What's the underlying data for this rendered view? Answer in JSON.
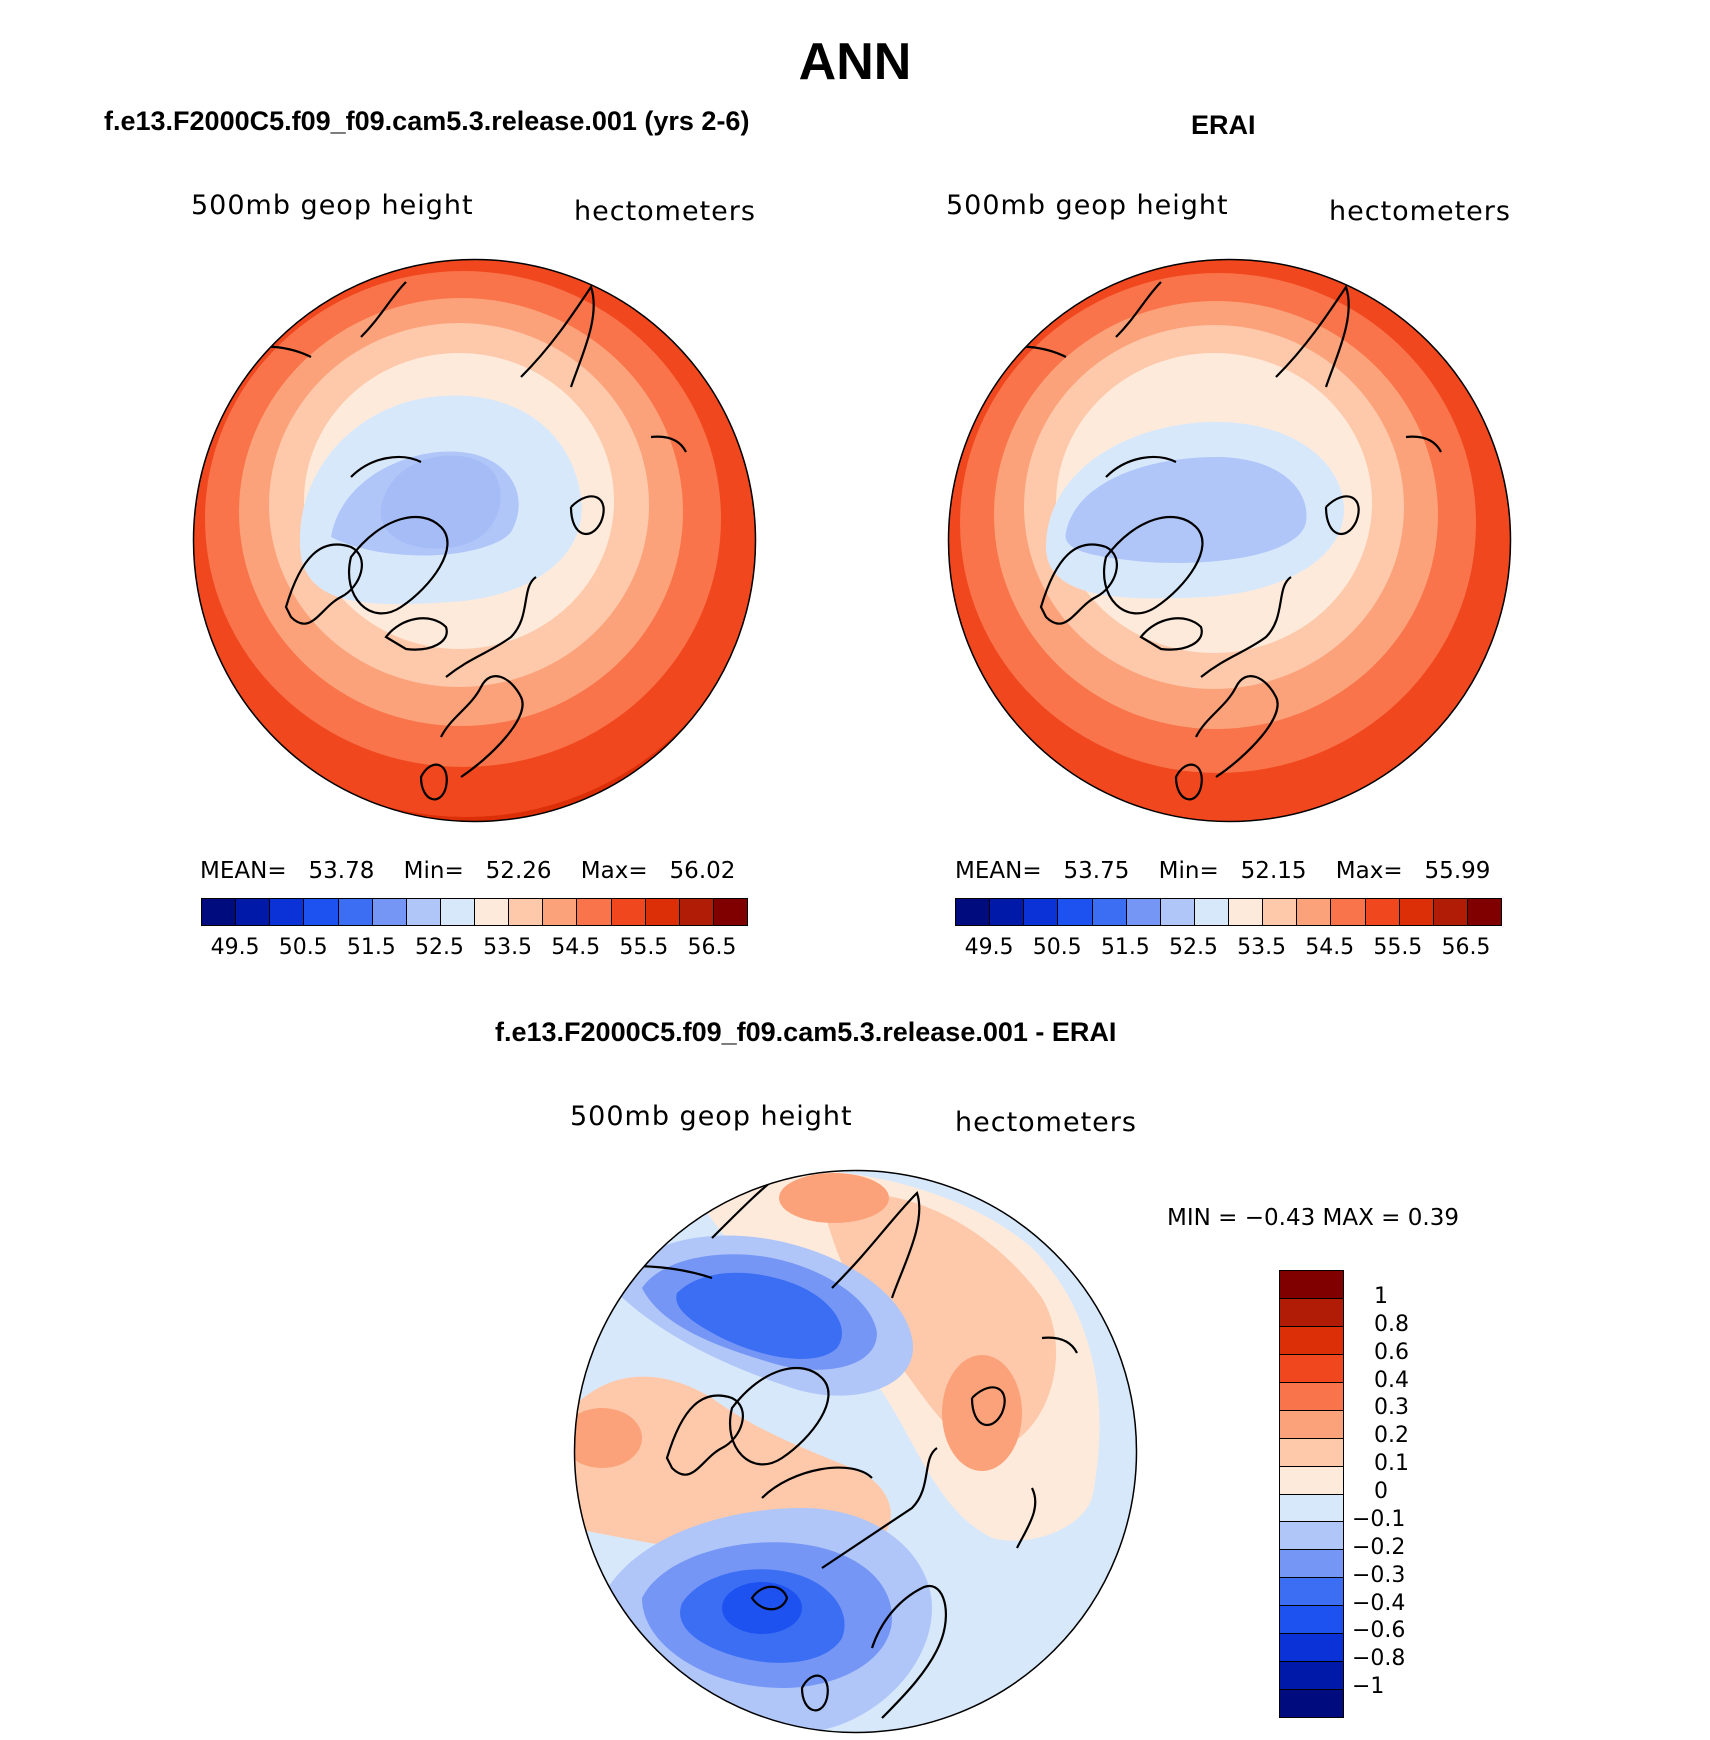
{
  "figure": {
    "title": "ANN",
    "difference_title": "f.e13.F2000C5.f09_f09.cam5.3.release.001 - ERAI"
  },
  "panels": [
    {
      "title": "f.e13.F2000C5.f09_f09.cam5.3.release.001 (yrs 2-6)",
      "variable": "500mb geop height",
      "units": "hectometers",
      "mean_label": "MEAN=",
      "mean": "53.78",
      "min_label": "Min=",
      "min": "52.26",
      "max_label": "Max=",
      "max": "56.02"
    },
    {
      "title": "ERAI",
      "variable": "500mb geop height",
      "units": "hectometers",
      "mean_label": "MEAN=",
      "mean": "53.75",
      "min_label": "Min=",
      "min": "52.15",
      "max_label": "Max=",
      "max": "55.99"
    }
  ],
  "diff_panel": {
    "variable": "500mb geop height",
    "units": "hectometers",
    "stats": "MIN =   −0.43  MAX =    0.39"
  },
  "colorbar_main": {
    "colors": [
      "#000c7d",
      "#0019a8",
      "#0a32d6",
      "#1e52f0",
      "#3c6ef4",
      "#7596f5",
      "#b0c6f8",
      "#d8e8fb",
      "#feeadb",
      "#fdc9aa",
      "#fca27a",
      "#f9744a",
      "#f0471f",
      "#dc2f08",
      "#b01c05",
      "#800000"
    ],
    "tick_labels": [
      "49.5",
      "50.5",
      "51.5",
      "52.5",
      "53.5",
      "54.5",
      "55.5",
      "56.5"
    ]
  },
  "colorbar_diff": {
    "colors": [
      "#800000",
      "#b01c05",
      "#dc2f08",
      "#f0471f",
      "#f9744a",
      "#fca27a",
      "#fdc9aa",
      "#feeadb",
      "#d8e8fb",
      "#b0c6f8",
      "#7596f5",
      "#3c6ef4",
      "#1e52f0",
      "#0a32d6",
      "#0019a8",
      "#000c7d"
    ],
    "tick_labels": [
      "1",
      "0.8",
      "0.6",
      "0.4",
      "0.3",
      "0.2",
      "0.1",
      "0",
      "−0.1",
      "−0.2",
      "−0.3",
      "−0.4",
      "−0.6",
      "−0.8",
      "−1"
    ]
  }
}
